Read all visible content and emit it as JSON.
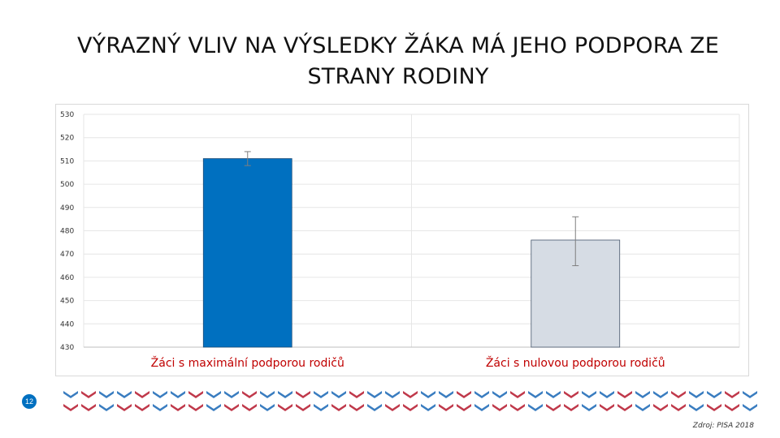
{
  "slide": {
    "title": "VÝRAZNÝ VLIV NA VÝSLEDKY ŽÁKA MÁ JEHO PODPORA ZE STRANY RODINY",
    "slide_number": "12",
    "source": "Zdroj: PISA 2018"
  },
  "colors": {
    "bar_primary": "#0070c0",
    "bar_secondary": "#d6dce4",
    "pattern_blue": "#3a7dc0",
    "pattern_red": "#c0394b"
  },
  "chart_data": {
    "type": "bar",
    "categories": [
      "Žáci s maximální podporou rodičů",
      "Žáci s nulovou podporou rodičů"
    ],
    "values": [
      511,
      476
    ],
    "error_low": [
      508,
      465
    ],
    "error_high": [
      514,
      486
    ],
    "bar_colors": [
      "#0070c0",
      "#d6dce4"
    ],
    "ylim": [
      430,
      530
    ],
    "yticks": [
      530,
      520,
      510,
      500,
      490,
      480,
      470,
      460,
      450,
      440,
      430
    ],
    "grid": "horizontal"
  }
}
